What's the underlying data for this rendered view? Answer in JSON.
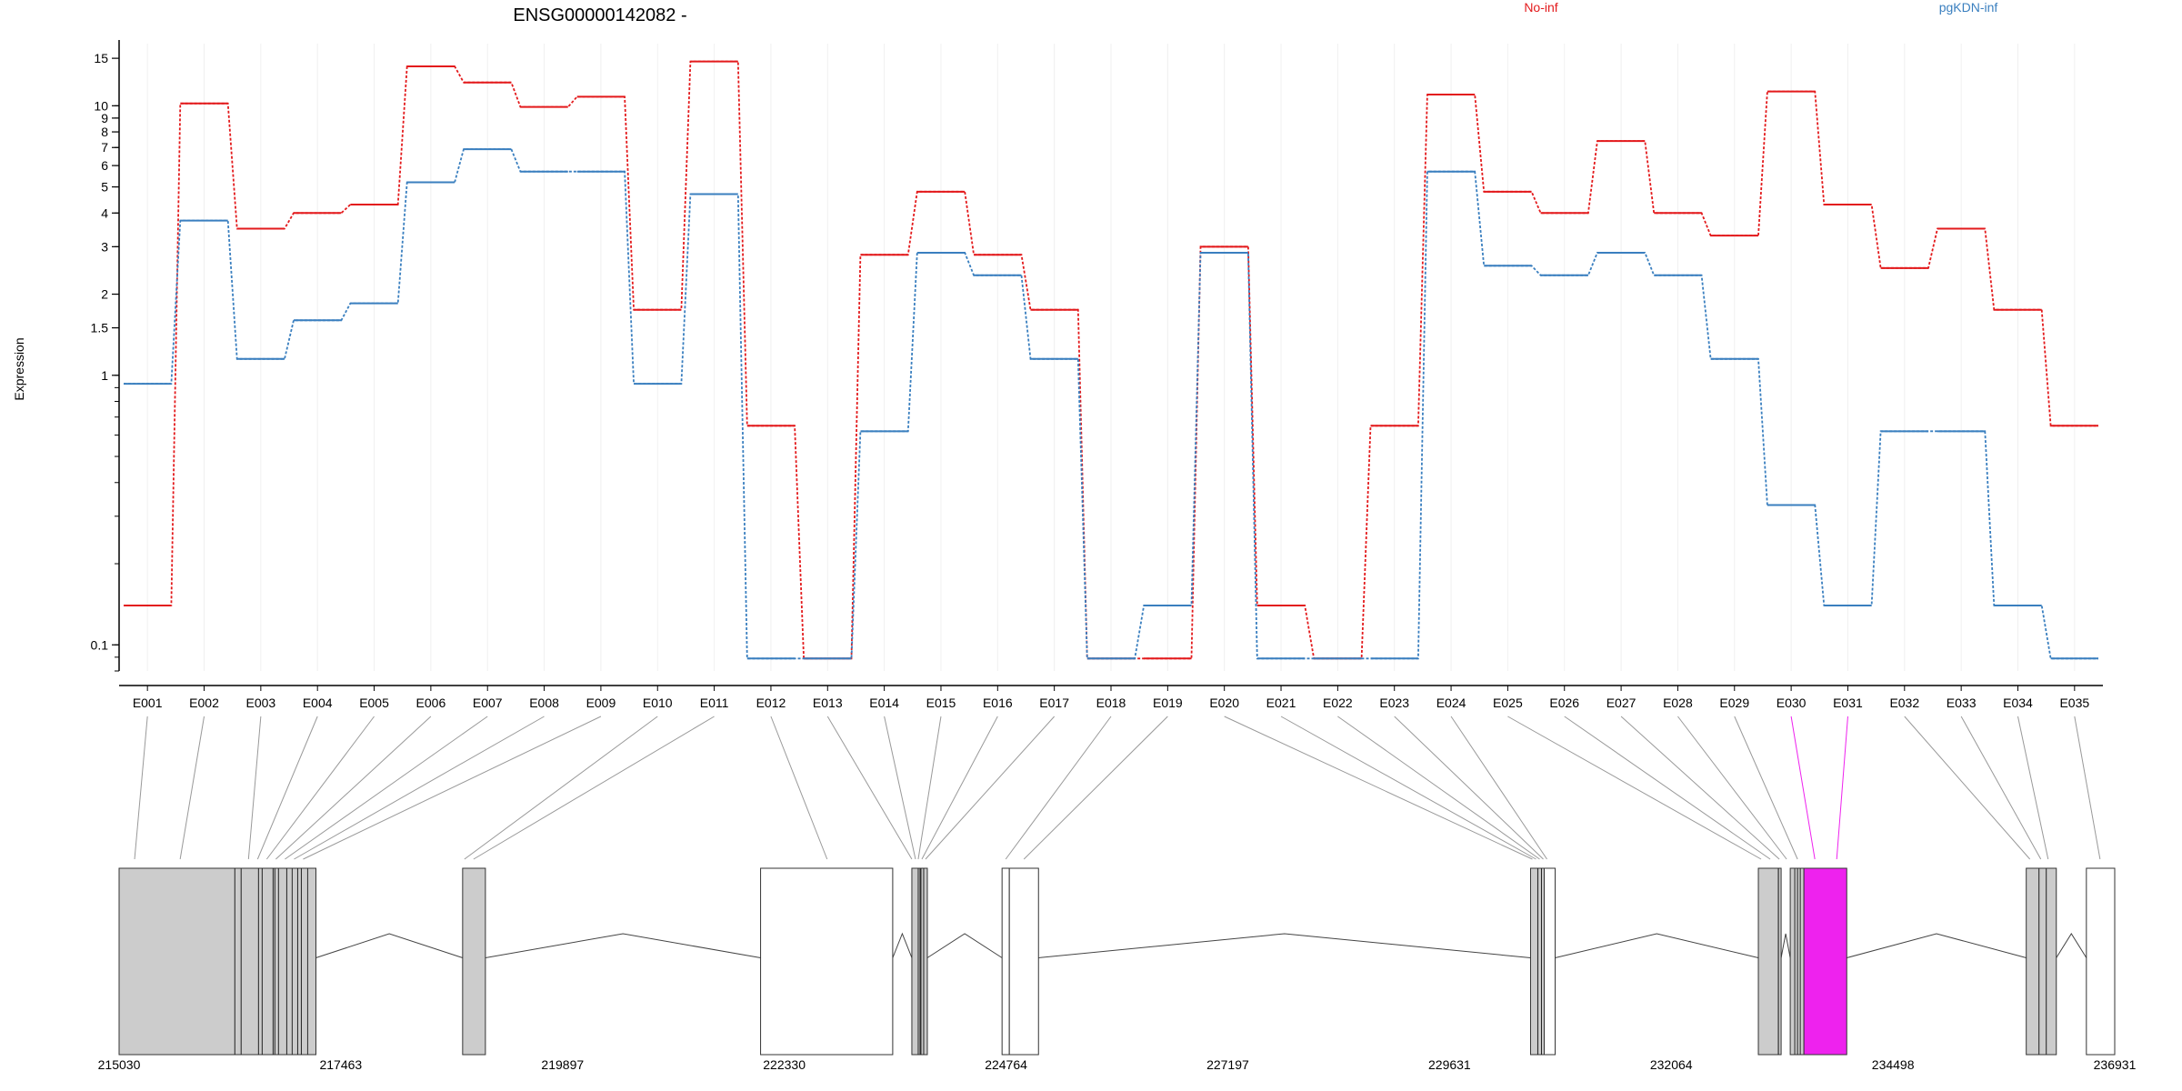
{
  "chart_data": {
    "type": "line",
    "title": "ENSG00000142082 -",
    "xlabel": "",
    "ylabel": "Expression",
    "y_scale": "log",
    "ylim": [
      0.08,
      17
    ],
    "y_ticks": [
      "0.1",
      "1",
      "1.5",
      "2",
      "3",
      "4",
      "5",
      "6",
      "7",
      "8",
      "9",
      "10",
      "15"
    ],
    "grid": true,
    "legend_position": "top",
    "categories": [
      "E001",
      "E002",
      "E003",
      "E004",
      "E005",
      "E006",
      "E007",
      "E008",
      "E009",
      "E010",
      "E011",
      "E012",
      "E013",
      "E014",
      "E015",
      "E016",
      "E017",
      "E018",
      "E019",
      "E020",
      "E021",
      "E022",
      "E023",
      "E024",
      "E025",
      "E026",
      "E027",
      "E028",
      "E029",
      "E030",
      "E031",
      "E032",
      "E033",
      "E034",
      "E035"
    ],
    "series": [
      {
        "name": "No-inf",
        "color": "#e31a1c",
        "values": [
          0.14,
          10.2,
          3.5,
          4.0,
          4.3,
          14.0,
          12.2,
          9.9,
          10.8,
          1.75,
          14.6,
          0.65,
          0.089,
          2.8,
          4.8,
          2.8,
          1.75,
          0.089,
          0.089,
          3.0,
          0.14,
          0.089,
          0.65,
          11.0,
          4.8,
          4.0,
          7.4,
          4.0,
          3.3,
          11.3,
          4.3,
          2.5,
          3.5,
          1.75,
          0.65
        ]
      },
      {
        "name": "pgKDN-inf",
        "color": "#3a7fbf",
        "values": [
          0.93,
          3.75,
          1.15,
          1.6,
          1.85,
          5.2,
          6.9,
          5.7,
          5.7,
          0.93,
          4.7,
          0.089,
          0.089,
          0.62,
          2.85,
          2.35,
          1.15,
          0.089,
          0.14,
          2.85,
          0.089,
          0.089,
          0.089,
          5.7,
          2.55,
          2.35,
          2.85,
          2.35,
          1.15,
          0.33,
          0.14,
          0.62,
          0.62,
          0.14,
          0.089
        ]
      }
    ],
    "gene_model": {
      "coord_ticks": [
        "215030",
        "217463",
        "219897",
        "222330",
        "224764",
        "227197",
        "229631",
        "232064",
        "234498",
        "236931"
      ],
      "coord_range": [
        215030,
        236931
      ],
      "highlight_color": "#ee22ee",
      "exon_fill": "#cccccc",
      "blocks": [
        {
          "start": 215030,
          "end": 216370,
          "filled": true
        },
        {
          "start": 216370,
          "end": 216740,
          "filled": true
        },
        {
          "start": 216740,
          "end": 216780,
          "filled": true
        },
        {
          "start": 216780,
          "end": 216930,
          "filled": true
        },
        {
          "start": 216930,
          "end": 217100,
          "filled": true
        },
        {
          "start": 217100,
          "end": 217190,
          "filled": true
        },
        {
          "start": 218800,
          "end": 219050,
          "filled": true
        },
        {
          "start": 222070,
          "end": 223520,
          "filled": false
        },
        {
          "start": 223730,
          "end": 223820,
          "filled": true
        },
        {
          "start": 223820,
          "end": 223900,
          "filled": true
        },
        {
          "start": 224720,
          "end": 224800,
          "filled": false
        },
        {
          "start": 224800,
          "end": 225120,
          "filled": false
        },
        {
          "start": 230520,
          "end": 230600,
          "filled": true
        },
        {
          "start": 230600,
          "end": 230670,
          "filled": true
        },
        {
          "start": 230670,
          "end": 230790,
          "filled": false
        },
        {
          "start": 233020,
          "end": 233240,
          "filled": true
        },
        {
          "start": 233240,
          "end": 233270,
          "filled": true
        },
        {
          "start": 233370,
          "end": 233420,
          "filled": true
        },
        {
          "start": 233420,
          "end": 233520,
          "filled": true
        },
        {
          "start": 233520,
          "end": 233990,
          "filled": true,
          "highlight": true
        },
        {
          "start": 235960,
          "end": 236100,
          "filled": true
        },
        {
          "start": 236100,
          "end": 236180,
          "filled": true
        },
        {
          "start": 236180,
          "end": 236290,
          "filled": true
        },
        {
          "start": 236620,
          "end": 236931,
          "filled": false
        }
      ],
      "introns": [
        {
          "start": 217190,
          "end": 218800
        },
        {
          "start": 219050,
          "end": 222070
        },
        {
          "start": 223520,
          "end": 223730
        },
        {
          "start": 223900,
          "end": 224720
        },
        {
          "start": 225120,
          "end": 230520
        },
        {
          "start": 230790,
          "end": 233020
        },
        {
          "start": 233270,
          "end": 233370
        },
        {
          "start": 233990,
          "end": 235960
        },
        {
          "start": 236290,
          "end": 236620
        }
      ],
      "separators": [
        216300,
        216560,
        216600,
        216720,
        216870,
        216990,
        217030,
        223800,
        223830,
        223860,
        230600,
        230640,
        233240,
        233450,
        233480
      ],
      "exon_links": [
        {
          "exon": "E001",
          "coord": 215200
        },
        {
          "exon": "E002",
          "coord": 215700
        },
        {
          "exon": "E003",
          "coord": 216450
        },
        {
          "exon": "E004",
          "coord": 216550
        },
        {
          "exon": "E005",
          "coord": 216650
        },
        {
          "exon": "E006",
          "coord": 216750
        },
        {
          "exon": "E007",
          "coord": 216850
        },
        {
          "exon": "E008",
          "coord": 216950
        },
        {
          "exon": "E009",
          "coord": 217050
        },
        {
          "exon": "E010",
          "coord": 218820
        },
        {
          "exon": "E011",
          "coord": 218920
        },
        {
          "exon": "E012",
          "coord": 222800
        },
        {
          "exon": "E013",
          "coord": 223730
        },
        {
          "exon": "E014",
          "coord": 223770
        },
        {
          "exon": "E015",
          "coord": 223800
        },
        {
          "exon": "E016",
          "coord": 223840
        },
        {
          "exon": "E017",
          "coord": 223880
        },
        {
          "exon": "E018",
          "coord": 224760
        },
        {
          "exon": "E019",
          "coord": 224960
        },
        {
          "exon": "E020",
          "coord": 230540
        },
        {
          "exon": "E021",
          "coord": 230580
        },
        {
          "exon": "E022",
          "coord": 230620
        },
        {
          "exon": "E023",
          "coord": 230660
        },
        {
          "exon": "E024",
          "coord": 230700
        },
        {
          "exon": "E025",
          "coord": 233050
        },
        {
          "exon": "E026",
          "coord": 233150
        },
        {
          "exon": "E027",
          "coord": 233250
        },
        {
          "exon": "E028",
          "coord": 233330
        },
        {
          "exon": "E029",
          "coord": 233450
        },
        {
          "exon": "E030",
          "coord": 233640,
          "highlight": true
        },
        {
          "exon": "E031",
          "coord": 233880,
          "highlight": true
        },
        {
          "exon": "E032",
          "coord": 236000
        },
        {
          "exon": "E033",
          "coord": 236120
        },
        {
          "exon": "E034",
          "coord": 236200
        },
        {
          "exon": "E035",
          "coord": 236770
        }
      ]
    }
  }
}
